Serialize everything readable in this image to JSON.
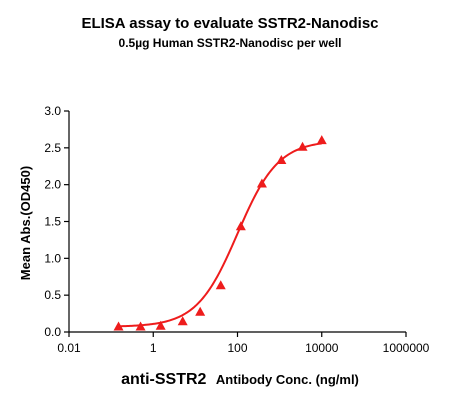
{
  "chart_data": {
    "type": "scatter",
    "title": "ELISA assay to evaluate SSTR2-Nanodisc",
    "subtitle": "0.5µg Human SSTR2-Nanodisc per well",
    "ylabel": "Mean Abs.(OD450)",
    "xlabel_main": "anti-SSTR2",
    "xlabel_rest": "Antibody Conc. (ng/ml)",
    "xscale": "log",
    "xlim": [
      0.01,
      1000000
    ],
    "ylim": [
      0,
      3.0
    ],
    "x_ticks": [
      0.01,
      1,
      100,
      10000,
      1000000
    ],
    "x_tick_labels": [
      "0.01",
      "1",
      "100",
      "10000",
      "1000000"
    ],
    "y_ticks": [
      0.0,
      0.5,
      1.0,
      1.5,
      2.0,
      2.5,
      3.0
    ],
    "y_tick_labels": [
      "0.0",
      "0.5",
      "1.0",
      "1.5",
      "2.0",
      "2.5",
      "3.0"
    ],
    "grid": false,
    "series": [
      {
        "color": "#ee1c1c",
        "marker": "triangle",
        "x": [
          0.15,
          0.5,
          1.5,
          5,
          13,
          40,
          120,
          380,
          1100,
          3500,
          10000
        ],
        "y": [
          0.07,
          0.07,
          0.08,
          0.14,
          0.27,
          0.63,
          1.43,
          2.01,
          2.33,
          2.51,
          2.6
        ]
      }
    ],
    "fit_curve": {
      "type": "4PL",
      "bottom": 0.07,
      "top": 2.6,
      "ec50": 100,
      "hill": 0.9,
      "color": "#ee1c1c"
    }
  }
}
